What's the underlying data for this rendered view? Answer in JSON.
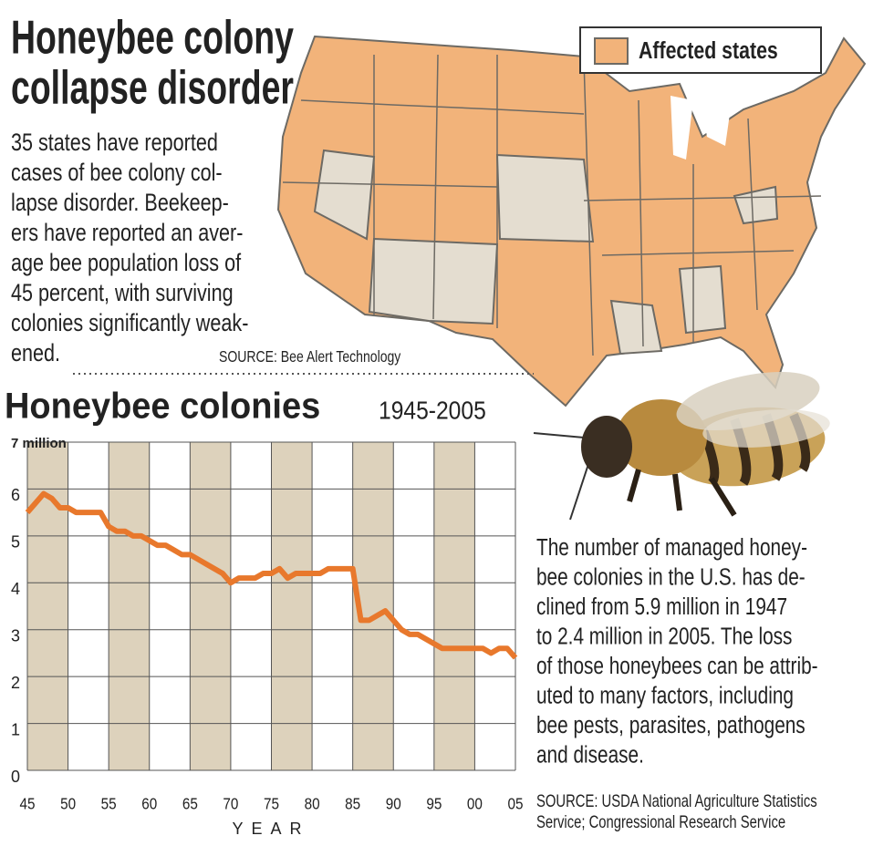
{
  "header": {
    "title": [
      "Honeybee colony",
      "collapse disorder"
    ],
    "intro": [
      "35 states have reported",
      "cases of bee colony col-",
      "lapse disorder. Beekeep-",
      "ers have reported an aver-",
      "age bee population loss of",
      "45 percent, with surviving",
      "colonies significantly weak-",
      "ened."
    ],
    "source": "SOURCE: Bee Alert Technology"
  },
  "map": {
    "legend": "Affected states"
  },
  "chart_data": {
    "type": "line",
    "title": "Honeybee colonies",
    "subtitle": "1945-2005",
    "x_label": "YEAR",
    "color": "#e8782c",
    "x": [
      1945,
      1946,
      1947,
      1948,
      1949,
      1950,
      1951,
      1952,
      1953,
      1954,
      1955,
      1956,
      1957,
      1958,
      1959,
      1960,
      1961,
      1962,
      1963,
      1964,
      1965,
      1966,
      1967,
      1968,
      1969,
      1970,
      1971,
      1972,
      1973,
      1974,
      1975,
      1976,
      1977,
      1978,
      1979,
      1980,
      1981,
      1982,
      1983,
      1984,
      1985,
      1986,
      1987,
      1988,
      1989,
      1990,
      1991,
      1992,
      1993,
      1994,
      1995,
      1996,
      1997,
      1998,
      1999,
      2000,
      2001,
      2002,
      2003,
      2004,
      2005
    ],
    "values": [
      5.5,
      5.7,
      5.9,
      5.8,
      5.6,
      5.6,
      5.5,
      5.5,
      5.5,
      5.5,
      5.2,
      5.1,
      5.1,
      5.0,
      5.0,
      4.9,
      4.8,
      4.8,
      4.7,
      4.6,
      4.6,
      4.5,
      4.4,
      4.3,
      4.2,
      4.0,
      4.1,
      4.1,
      4.1,
      4.2,
      4.2,
      4.3,
      4.1,
      4.2,
      4.2,
      4.2,
      4.2,
      4.3,
      4.3,
      4.3,
      4.3,
      3.2,
      3.2,
      3.3,
      3.4,
      3.2,
      3.0,
      2.9,
      2.9,
      2.8,
      2.7,
      2.6,
      2.6,
      2.6,
      2.6,
      2.6,
      2.6,
      2.5,
      2.6,
      2.6,
      2.4
    ],
    "xlim": [
      1945,
      2005
    ],
    "xticks": [
      {
        "value": 1945,
        "label": "45"
      },
      {
        "value": 1950,
        "label": "50"
      },
      {
        "value": 1955,
        "label": "55"
      },
      {
        "value": 1960,
        "label": "60"
      },
      {
        "value": 1965,
        "label": "65"
      },
      {
        "value": 1970,
        "label": "70"
      },
      {
        "value": 1975,
        "label": "75"
      },
      {
        "value": 1980,
        "label": "80"
      },
      {
        "value": 1985,
        "label": "85"
      },
      {
        "value": 1990,
        "label": "90"
      },
      {
        "value": 1995,
        "label": "95"
      },
      {
        "value": 2000,
        "label": "00"
      },
      {
        "value": 2005,
        "label": "05"
      }
    ],
    "ylim": [
      0,
      7
    ],
    "yticks": [
      0,
      1,
      2,
      3,
      4,
      5,
      6,
      {
        "value": 7,
        "label": "7 million"
      }
    ],
    "grid": true
  },
  "note": {
    "text": [
      "The number of managed honey-",
      "bee colonies in the U.S. has de-",
      "clined from 5.9 million in 1947",
      "to 2.4 million in 2005. The loss",
      "of those honeybees can be attrib-",
      "uted to many factors, including",
      "bee pests, parasites, pathogens",
      "and disease."
    ],
    "source": [
      "SOURCE: USDA National Agriculture Statistics",
      "Service; Congressional Research Service"
    ]
  }
}
